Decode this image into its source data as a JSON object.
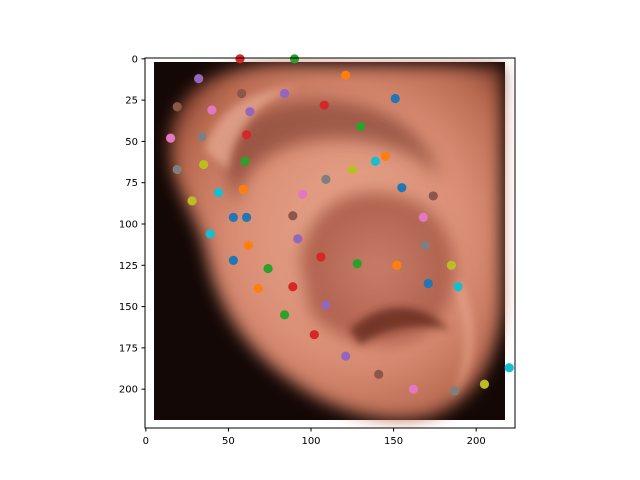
{
  "chart_data": {
    "type": "scatter",
    "background_image": "ear-photo",
    "xlim": [
      -0.5,
      223.5
    ],
    "ylim": [
      223.5,
      -0.5
    ],
    "y_inverted": true,
    "grid": false,
    "x_ticks": [
      0,
      50,
      100,
      150,
      200
    ],
    "y_ticks": [
      0,
      25,
      50,
      75,
      100,
      125,
      150,
      175,
      200
    ],
    "xlabel": "",
    "ylabel": "",
    "title": "",
    "points": [
      {
        "x": 57,
        "y": 0,
        "color": "#d62728"
      },
      {
        "x": 90,
        "y": 0,
        "color": "#2ca02c"
      },
      {
        "x": 32,
        "y": 12,
        "color": "#9467bd"
      },
      {
        "x": 121,
        "y": 10,
        "color": "#ff7f0e"
      },
      {
        "x": 58,
        "y": 21,
        "color": "#8c564b"
      },
      {
        "x": 84,
        "y": 21,
        "color": "#9467bd"
      },
      {
        "x": 151,
        "y": 24,
        "color": "#1f77b4"
      },
      {
        "x": 19,
        "y": 29,
        "color": "#8c564b"
      },
      {
        "x": 108,
        "y": 28,
        "color": "#d62728"
      },
      {
        "x": 40,
        "y": 31,
        "color": "#e377c2"
      },
      {
        "x": 63,
        "y": 32,
        "color": "#9467bd"
      },
      {
        "x": 130,
        "y": 41,
        "color": "#2ca02c"
      },
      {
        "x": 15,
        "y": 48,
        "color": "#e377c2"
      },
      {
        "x": 34,
        "y": 47,
        "color": "#7f7f7f"
      },
      {
        "x": 61,
        "y": 46,
        "color": "#d62728"
      },
      {
        "x": 35,
        "y": 64,
        "color": "#bcbd22"
      },
      {
        "x": 60,
        "y": 62,
        "color": "#2ca02c"
      },
      {
        "x": 139,
        "y": 62,
        "color": "#17becf"
      },
      {
        "x": 145,
        "y": 59,
        "color": "#ff7f0e"
      },
      {
        "x": 19,
        "y": 67,
        "color": "#7f7f7f"
      },
      {
        "x": 125,
        "y": 67,
        "color": "#bcbd22"
      },
      {
        "x": 109,
        "y": 73,
        "color": "#7f7f7f"
      },
      {
        "x": 155,
        "y": 78,
        "color": "#1f77b4"
      },
      {
        "x": 59,
        "y": 79,
        "color": "#ff7f0e"
      },
      {
        "x": 44,
        "y": 81,
        "color": "#17becf"
      },
      {
        "x": 95,
        "y": 82,
        "color": "#e377c2"
      },
      {
        "x": 174,
        "y": 83,
        "color": "#8c564b"
      },
      {
        "x": 28,
        "y": 86,
        "color": "#bcbd22"
      },
      {
        "x": 53,
        "y": 96,
        "color": "#1f77b4"
      },
      {
        "x": 61,
        "y": 96,
        "color": "#1f77b4"
      },
      {
        "x": 89,
        "y": 95,
        "color": "#8c564b"
      },
      {
        "x": 168,
        "y": 96,
        "color": "#e377c2"
      },
      {
        "x": 39,
        "y": 106,
        "color": "#17becf"
      },
      {
        "x": 92,
        "y": 109,
        "color": "#9467bd"
      },
      {
        "x": 62,
        "y": 113,
        "color": "#ff7f0e"
      },
      {
        "x": 169,
        "y": 113,
        "color": "#7f7f7f"
      },
      {
        "x": 106,
        "y": 120,
        "color": "#d62728"
      },
      {
        "x": 53,
        "y": 122,
        "color": "#1f77b4"
      },
      {
        "x": 128,
        "y": 124,
        "color": "#2ca02c"
      },
      {
        "x": 152,
        "y": 125,
        "color": "#ff7f0e"
      },
      {
        "x": 185,
        "y": 125,
        "color": "#bcbd22"
      },
      {
        "x": 74,
        "y": 127,
        "color": "#2ca02c"
      },
      {
        "x": 171,
        "y": 136,
        "color": "#1f77b4"
      },
      {
        "x": 68,
        "y": 139,
        "color": "#ff7f0e"
      },
      {
        "x": 89,
        "y": 138,
        "color": "#d62728"
      },
      {
        "x": 189,
        "y": 138,
        "color": "#17becf"
      },
      {
        "x": 109,
        "y": 149,
        "color": "#9467bd"
      },
      {
        "x": 84,
        "y": 155,
        "color": "#2ca02c"
      },
      {
        "x": 102,
        "y": 167,
        "color": "#d62728"
      },
      {
        "x": 121,
        "y": 180,
        "color": "#9467bd"
      },
      {
        "x": 220,
        "y": 187,
        "color": "#17becf"
      },
      {
        "x": 141,
        "y": 191,
        "color": "#8c564b"
      },
      {
        "x": 205,
        "y": 197,
        "color": "#bcbd22"
      },
      {
        "x": 162,
        "y": 200,
        "color": "#e377c2"
      },
      {
        "x": 187,
        "y": 201,
        "color": "#7f7f7f"
      }
    ]
  }
}
